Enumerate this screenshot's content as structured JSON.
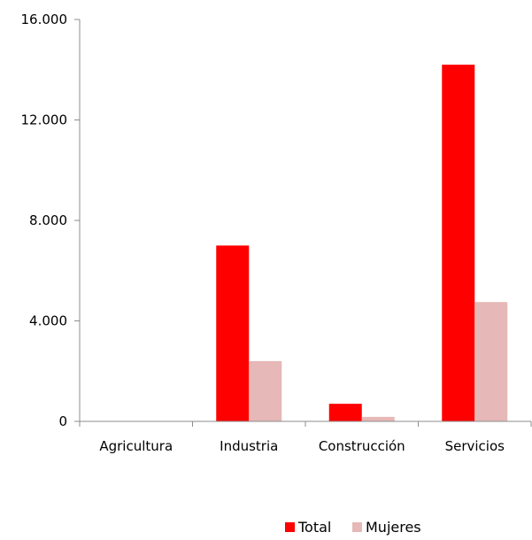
{
  "chart_data": {
    "type": "bar",
    "categories": [
      "Agricultura",
      "Industria",
      "Construcción",
      "Servicios"
    ],
    "series": [
      {
        "name": "Total",
        "color": "#ff0000",
        "values": [
          0,
          7000,
          700,
          14200
        ]
      },
      {
        "name": "Mujeres",
        "color": "#e6b8b7",
        "values": [
          0,
          2400,
          180,
          4750
        ]
      }
    ],
    "ylim": [
      0,
      16000
    ],
    "yticks": [
      0,
      4000,
      8000,
      12000,
      16000
    ],
    "ytick_labels": [
      "0",
      "4.000",
      "8.000",
      "12.000",
      "16.000"
    ],
    "grid": false,
    "legend_position": "bottom"
  }
}
